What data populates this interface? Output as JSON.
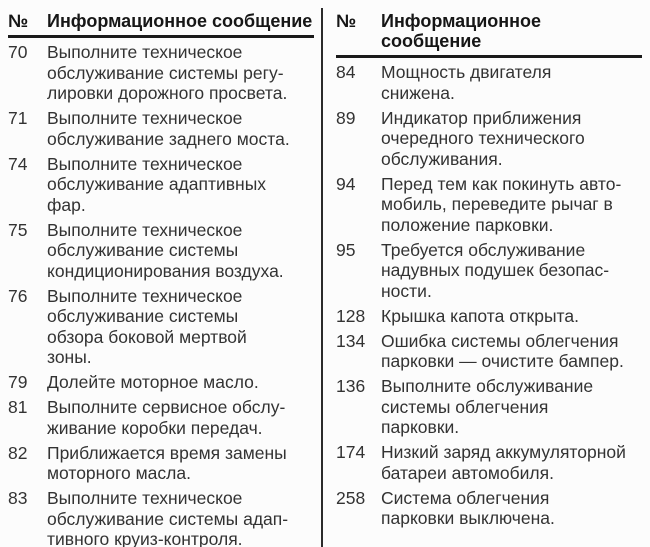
{
  "page": {
    "background": "#fcfcfc",
    "text_color": "#333333",
    "rule_color": "#1a1a1a"
  },
  "tables": [
    {
      "header": {
        "num_label": "№",
        "message_label": "Информационное сообщение"
      },
      "rows": [
        {
          "num": "70",
          "message": "Выполните техническое\nобслуживание системы регу-\nлировки дорожного просвета."
        },
        {
          "num": "71",
          "message": "Выполните техническое\nобслуживание заднего моста."
        },
        {
          "num": "74",
          "message": "Выполните техническое\nобслуживание адаптивных\nфар."
        },
        {
          "num": "75",
          "message": "Выполните техническое\nобслуживание системы\nкондиционирования воздуха."
        },
        {
          "num": "76",
          "message": "Выполните техническое\nобслуживание системы\nобзора боковой мертвой\nзоны."
        },
        {
          "num": "79",
          "message": "Долейте моторное масло."
        },
        {
          "num": "81",
          "message": "Выполните сервисное обслу-\nживание коробки передач."
        },
        {
          "num": "82",
          "message": "Приближается время замены\nмоторного масла."
        },
        {
          "num": "83",
          "message": "Выполните техническое\nобслуживание системы адап-\nтивного круиз-контроля."
        }
      ]
    },
    {
      "header": {
        "num_label": "№",
        "message_label": "Информационное сообщение"
      },
      "rows": [
        {
          "num": "84",
          "message": "Мощность двигателя\nснижена."
        },
        {
          "num": "89",
          "message": "Индикатор приближения\nочередного технического\nобслуживания."
        },
        {
          "num": "94",
          "message": "Перед тем как покинуть авто-\nмобиль, переведите рычаг в\nположение парковки."
        },
        {
          "num": "95",
          "message": "Требуется обслуживание\nнадувных подушек безопас-\nности."
        },
        {
          "num": "128",
          "message": "Крышка капота открыта."
        },
        {
          "num": "134",
          "message": "Ошибка системы облегчения\nпарковки — очистите бампер."
        },
        {
          "num": "136",
          "message": "Выполните обслуживание\nсистемы облегчения\nпарковки."
        },
        {
          "num": "174",
          "message": "Низкий заряд аккумуляторной\nбатареи автомобиля."
        },
        {
          "num": "258",
          "message": "Система облегчения\nпарковки выключена."
        }
      ]
    }
  ]
}
